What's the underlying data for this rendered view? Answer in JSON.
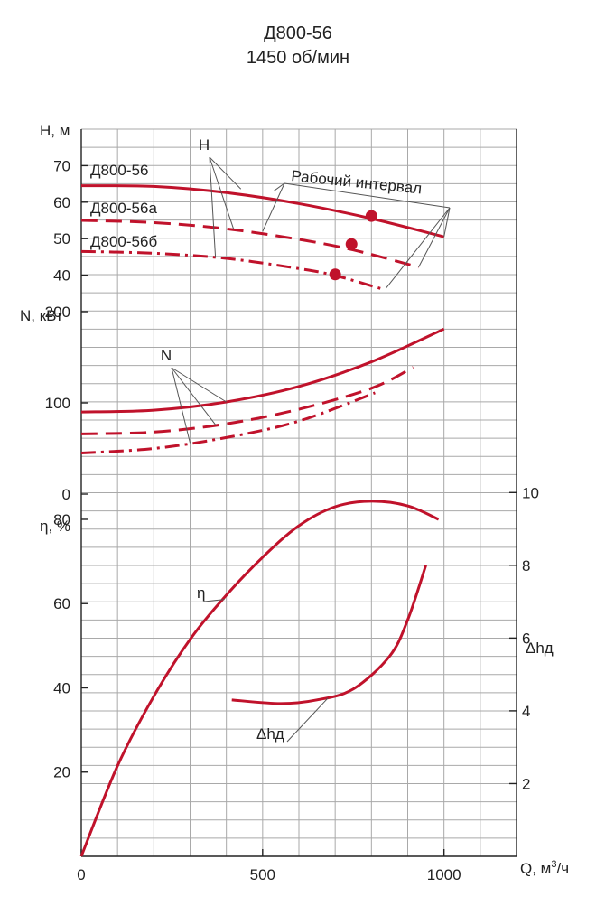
{
  "title": "Д800-56",
  "subtitle": "1450 об/мин",
  "chart_data": {
    "type": "line",
    "x_axis": {
      "label": "Q, м³/ч",
      "label_main": "Q, м",
      "label_sup": "3",
      "label_tail": "/ч",
      "range": [
        0,
        1200
      ],
      "ticks": [
        0,
        500,
        1000
      ],
      "grid_step": 100
    },
    "grid": true,
    "panels": [
      {
        "id": "H",
        "ylabel": "H, м",
        "ylim": [
          30,
          80
        ],
        "ticks": [
          40,
          50,
          60,
          70
        ],
        "group_label": "H",
        "annotation": "Рабочий интервал",
        "series": [
          {
            "name": "Д800-56",
            "style": "solid",
            "x": [
              0,
              200,
              400,
              600,
              800,
              1000
            ],
            "y": [
              64.5,
              64.3,
              62.6,
              59.6,
              55.5,
              50.5
            ],
            "operating_point": [
              800,
              56.2
            ],
            "work_interval": [
              530,
              1000
            ]
          },
          {
            "name": "Д800-56а",
            "style": "dashed",
            "x": [
              0,
              200,
              400,
              600,
              750,
              930
            ],
            "y": [
              55,
              54.4,
              52.7,
              49.8,
              46.9,
              42.2
            ],
            "operating_point": [
              745,
              48.5
            ],
            "work_interval": [
              500,
              930
            ]
          },
          {
            "name": "Д800-56б",
            "style": "dashdot",
            "x": [
              0,
              200,
              400,
              600,
              700,
              830
            ],
            "y": [
              46.5,
              46,
              44.6,
              41.8,
              39.9,
              36.2
            ],
            "operating_point": [
              700,
              40.2
            ],
            "work_interval": [
              490,
              830
            ]
          }
        ]
      },
      {
        "id": "N",
        "ylabel": "N, кВт",
        "ylim": [
          0,
          200
        ],
        "ticks": [
          0,
          100,
          200
        ],
        "group_label": "N",
        "series": [
          {
            "name": "Д800-56",
            "style": "solid",
            "x": [
              0,
              200,
              400,
              600,
              800,
              1000
            ],
            "y": [
              90,
              92,
              101,
              118,
              145,
              181
            ]
          },
          {
            "name": "Д800-56а",
            "style": "dashed",
            "x": [
              0,
              200,
              400,
              600,
              800,
              915
            ],
            "y": [
              66,
              68,
              77,
              93,
              116,
              139
            ]
          },
          {
            "name": "Д800-56б",
            "style": "dashdot",
            "x": [
              0,
              200,
              400,
              600,
              810
            ],
            "y": [
              45,
              50,
              62,
              80,
              111
            ]
          }
        ]
      },
      {
        "id": "eta",
        "ylabel": "η, %",
        "ylim": [
          0,
          86
        ],
        "ticks": [
          20,
          40,
          60,
          80
        ],
        "series": [
          {
            "name": "η",
            "style": "solid",
            "x": [
              0,
              100,
              200,
              300,
              400,
              500,
              600,
              700,
              800,
              900,
              985
            ],
            "y": [
              0,
              21.5,
              38,
              51.5,
              62,
              71,
              78.5,
              83,
              84.3,
              83.2,
              80
            ]
          }
        ]
      }
    ],
    "secondary_axis": {
      "label": "Δhд",
      "ylim": [
        0,
        11
      ],
      "ticks": [
        2,
        4,
        6,
        8,
        10
      ],
      "series": [
        {
          "name": "Δhд",
          "style": "solid",
          "x": [
            415,
            550,
            650,
            750,
            850,
            900,
            950
          ],
          "y": [
            4.3,
            4.2,
            4.3,
            4.6,
            5.5,
            6.5,
            8
          ]
        }
      ]
    },
    "colors": {
      "curve": "#c0122b",
      "grid": "#a9a9a9",
      "axis": "#222222",
      "text": "#222222"
    }
  }
}
